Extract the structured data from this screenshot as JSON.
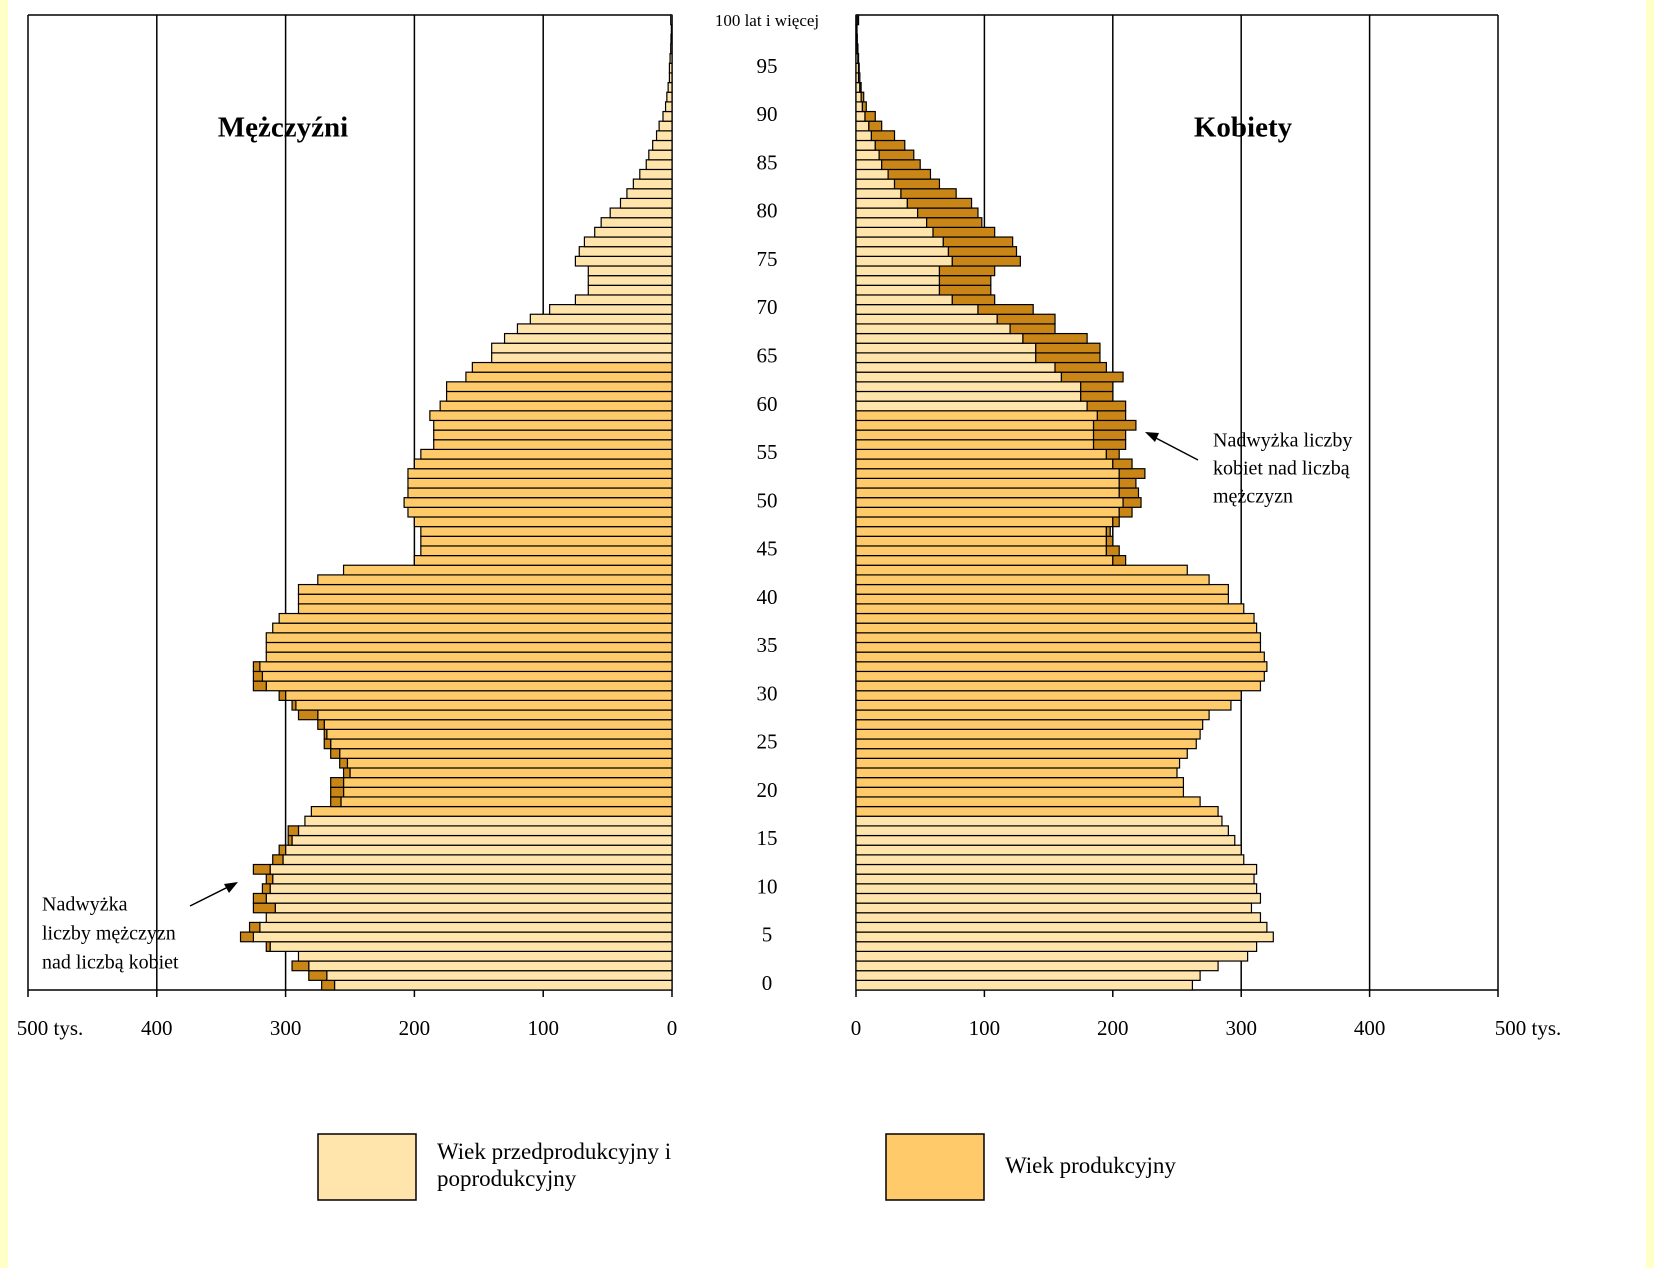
{
  "chart_data": {
    "type": "pyramid",
    "categories": [
      0,
      null,
      null,
      null,
      null,
      5,
      null,
      null,
      null,
      null,
      10,
      null,
      null,
      null,
      null,
      15,
      null,
      null,
      null,
      null,
      20,
      null,
      null,
      null,
      null,
      25,
      null,
      null,
      null,
      null,
      30,
      null,
      null,
      null,
      null,
      35,
      null,
      null,
      null,
      null,
      40,
      null,
      null,
      null,
      null,
      45,
      null,
      null,
      null,
      null,
      50,
      null,
      null,
      null,
      null,
      55,
      null,
      null,
      null,
      null,
      60,
      null,
      null,
      null,
      null,
      65,
      null,
      null,
      null,
      null,
      70,
      null,
      null,
      null,
      null,
      75,
      null,
      null,
      null,
      null,
      80,
      null,
      null,
      null,
      null,
      85,
      null,
      null,
      null,
      null,
      90,
      null,
      null,
      null,
      null,
      95,
      null,
      null,
      null,
      null,
      "100 lat i więcej"
    ],
    "left": {
      "title": "Mężczyźni",
      "xlim": [
        500,
        0
      ],
      "xticks": [
        {
          "value": 500,
          "label": "500 tys."
        },
        400,
        300,
        200,
        100,
        0
      ],
      "grid": true,
      "annotation": [
        "Nadwyżka",
        "liczby mężczyzn",
        "nad liczbą kobiet"
      ],
      "series": [
        {
          "name": "Wiek przedprodukcyjny i poprodukcyjny",
          "color": "#ffe4ac",
          "values": [
            262,
            268,
            282,
            290,
            312,
            325,
            320,
            315,
            308,
            315,
            312,
            310,
            312,
            302,
            300,
            295,
            290,
            285,
            null,
            null,
            null,
            null,
            null,
            null,
            null,
            null,
            null,
            null,
            null,
            null,
            null,
            null,
            null,
            null,
            null,
            null,
            null,
            null,
            null,
            null,
            null,
            null,
            null,
            null,
            null,
            null,
            null,
            null,
            null,
            null,
            null,
            null,
            null,
            null,
            null,
            null,
            null,
            null,
            null,
            null,
            null,
            null,
            null,
            null,
            null,
            140,
            140,
            130,
            120,
            110,
            95,
            75,
            65,
            65,
            65,
            75,
            72,
            68,
            60,
            55,
            48,
            40,
            35,
            30,
            25,
            20,
            18,
            15,
            12,
            10,
            7,
            5,
            4,
            3,
            2,
            2,
            1.5,
            1,
            0.8,
            0.5,
            1
          ]
        },
        {
          "name": "Wiek produkcyjny",
          "color": "#ffca6a",
          "values": [
            null,
            null,
            null,
            null,
            null,
            null,
            null,
            null,
            null,
            null,
            null,
            null,
            null,
            null,
            null,
            null,
            null,
            null,
            280,
            257,
            255,
            255,
            250,
            252,
            258,
            265,
            268,
            270,
            275,
            292,
            300,
            315,
            318,
            320,
            315,
            315,
            315,
            310,
            305,
            290,
            290,
            290,
            275,
            255,
            200,
            195,
            195,
            195,
            200,
            205,
            208,
            205,
            205,
            205,
            200,
            195,
            185,
            185,
            185,
            188,
            180,
            175,
            175,
            160,
            155,
            null,
            null,
            null,
            null,
            null,
            null,
            null,
            null,
            null,
            null,
            null,
            null,
            null,
            null,
            null,
            null,
            null,
            null,
            null,
            null,
            null,
            null,
            null,
            null,
            null,
            null,
            null,
            null,
            null,
            null,
            null,
            null,
            null,
            null,
            null,
            null
          ]
        },
        {
          "color": "#c98516",
          "values": [
            10,
            14,
            13,
            null,
            3,
            10,
            8,
            null,
            17,
            10,
            6,
            5,
            13,
            8,
            5,
            3,
            8,
            null,
            null,
            8,
            10,
            10,
            5,
            6,
            7,
            5,
            2,
            5,
            15,
            3,
            5,
            10,
            7,
            5,
            null,
            null,
            null,
            null,
            null,
            null,
            null,
            null,
            null,
            null,
            null,
            null,
            null,
            null,
            null,
            null,
            null,
            null,
            null,
            null,
            null,
            null,
            null,
            null,
            null,
            null,
            null,
            null,
            null,
            null,
            null,
            null,
            null,
            null,
            null,
            null,
            null,
            null,
            null,
            null,
            null,
            null,
            null,
            null,
            null,
            null,
            null,
            null,
            null,
            null,
            null,
            null,
            null,
            null,
            null,
            null,
            null,
            null,
            null,
            null,
            null,
            null,
            null,
            null,
            null,
            null,
            null
          ]
        }
      ]
    },
    "right": {
      "title": "Kobiety",
      "xlim": [
        0,
        500
      ],
      "xticks": [
        0,
        100,
        200,
        300,
        400,
        {
          "value": 500,
          "label": "500 tys."
        }
      ],
      "grid": true,
      "annotation": [
        "Nadwyżka liczby",
        "kobiet nad liczbą",
        "mężczyzn"
      ],
      "series": [
        {
          "color": "#ffe4ac",
          "values": [
            262,
            268,
            282,
            305,
            312,
            325,
            320,
            315,
            308,
            315,
            312,
            310,
            312,
            302,
            300,
            295,
            290,
            285,
            null,
            null,
            null,
            null,
            null,
            null,
            null,
            null,
            null,
            null,
            null,
            null,
            null,
            null,
            null,
            null,
            null,
            null,
            null,
            null,
            null,
            null,
            null,
            null,
            null,
            null,
            null,
            null,
            null,
            null,
            null,
            null,
            null,
            null,
            null,
            null,
            null,
            null,
            null,
            null,
            null,
            null,
            180,
            175,
            175,
            160,
            155,
            140,
            140,
            130,
            120,
            110,
            95,
            75,
            65,
            65,
            65,
            75,
            72,
            68,
            60,
            55,
            48,
            40,
            35,
            30,
            25,
            20,
            18,
            15,
            12,
            10,
            7,
            5,
            4,
            3,
            2,
            2,
            1.5,
            1,
            0.8,
            0.5,
            1
          ]
        },
        {
          "color": "#ffca6a",
          "values": [
            null,
            null,
            null,
            null,
            null,
            null,
            null,
            null,
            null,
            null,
            null,
            null,
            null,
            null,
            null,
            null,
            null,
            null,
            282,
            268,
            255,
            255,
            250,
            252,
            258,
            265,
            268,
            270,
            275,
            292,
            300,
            315,
            318,
            320,
            318,
            315,
            315,
            312,
            310,
            302,
            290,
            290,
            275,
            258,
            200,
            195,
            195,
            195,
            200,
            205,
            208,
            205,
            205,
            205,
            200,
            195,
            185,
            185,
            185,
            188,
            null,
            null,
            null,
            null,
            null,
            null,
            null,
            null,
            null,
            null,
            null,
            null,
            null,
            null,
            null,
            null,
            null,
            null,
            null,
            null,
            null,
            null,
            null,
            null,
            null,
            null,
            null,
            null,
            null,
            null,
            null,
            null,
            null,
            null,
            null,
            null,
            null,
            null,
            null,
            null,
            null
          ]
        },
        {
          "color": "#c98516",
          "values": [
            null,
            null,
            null,
            null,
            null,
            null,
            null,
            null,
            null,
            null,
            null,
            null,
            null,
            null,
            null,
            null,
            null,
            null,
            null,
            null,
            null,
            null,
            null,
            null,
            null,
            null,
            null,
            null,
            null,
            null,
            null,
            null,
            null,
            null,
            null,
            null,
            null,
            null,
            null,
            null,
            null,
            null,
            null,
            null,
            10,
            10,
            5,
            3,
            5,
            10,
            14,
            15,
            13,
            20,
            15,
            10,
            25,
            25,
            33,
            22,
            30,
            25,
            25,
            48,
            40,
            50,
            50,
            50,
            35,
            45,
            43,
            33,
            40,
            40,
            43,
            53,
            53,
            54,
            48,
            43,
            47,
            50,
            43,
            35,
            33,
            30,
            27,
            23,
            18,
            10,
            8,
            3,
            2,
            1,
            1,
            0.5,
            0.5,
            0.5,
            0.2,
            0.3,
            1
          ]
        }
      ]
    }
  }
}
